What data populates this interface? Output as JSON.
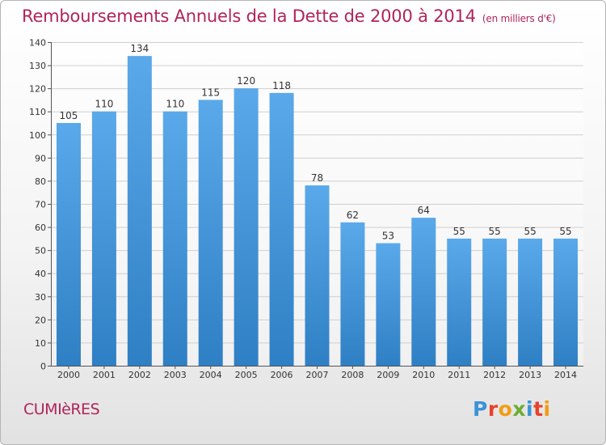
{
  "title": "Remboursements Annuels de la Dette de 2000 à 2014",
  "subtitle": "(en milliers d'€)",
  "commune": "CUMIèRES",
  "logo": {
    "letters": [
      "P",
      "r",
      "o",
      "x",
      "i",
      "t",
      "i"
    ],
    "colors": [
      "#3a93d6",
      "#e8412c",
      "#f39c12",
      "#6aae34",
      "#3a93d6",
      "#e8412c",
      "#f39c12"
    ]
  },
  "colors": {
    "bar_top": "#5aa9ea",
    "bar_bottom": "#2f7fc4",
    "title": "#b0245a",
    "grid": "#cfcfcf"
  },
  "chart_data": {
    "type": "bar",
    "title": "Remboursements Annuels de la Dette de 2000 à 2014",
    "xlabel": "",
    "ylabel": "",
    "categories": [
      "2000",
      "2001",
      "2002",
      "2003",
      "2004",
      "2005",
      "2006",
      "2007",
      "2008",
      "2009",
      "2010",
      "2011",
      "2012",
      "2013",
      "2014"
    ],
    "values": [
      105,
      110,
      134,
      110,
      115,
      120,
      118,
      78,
      62,
      53,
      64,
      55,
      55,
      55,
      55
    ],
    "ylim": [
      0,
      140
    ],
    "yticks": [
      0,
      10,
      20,
      30,
      40,
      50,
      60,
      70,
      80,
      90,
      100,
      110,
      120,
      130,
      140
    ],
    "grid": true,
    "legend": "none"
  }
}
